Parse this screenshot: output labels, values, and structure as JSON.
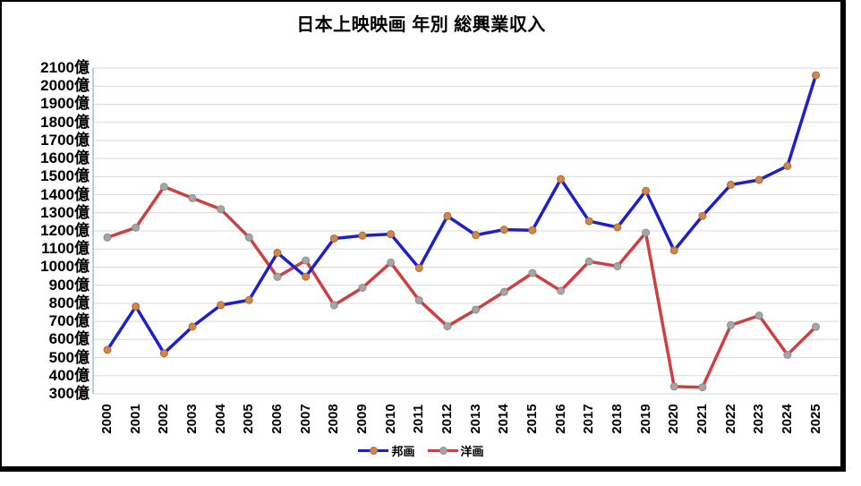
{
  "window": {
    "background_color": "#ffffff",
    "frame_border_color": "#000000"
  },
  "chart_data": {
    "type": "line",
    "title": "日本上映映画 年別 総興業収入",
    "x": [
      "2000",
      "2001",
      "2002",
      "2003",
      "2004",
      "2005",
      "2006",
      "2007",
      "2008",
      "2009",
      "2010",
      "2011",
      "2012",
      "2013",
      "2014",
      "2015",
      "2016",
      "2017",
      "2018",
      "2019",
      "2020",
      "2021",
      "2022",
      "2023",
      "2024",
      "2025"
    ],
    "series": [
      {
        "name": "邦画",
        "line_color": "#1E1ECB",
        "marker_fill": "#D0874A",
        "marker_stroke": "#B06A30",
        "values": [
          543,
          782,
          524,
          671,
          790,
          818,
          1079,
          947,
          1158,
          1174,
          1182,
          995,
          1282,
          1177,
          1207,
          1204,
          1486,
          1254,
          1220,
          1421,
          1092,
          1283,
          1455,
          1482,
          1559,
          2060
        ]
      },
      {
        "name": "洋画",
        "line_color": "#CE4040",
        "marker_fill": "#A6A6A6",
        "marker_stroke": "#8C8C8C",
        "values": [
          1164,
          1218,
          1444,
          1381,
          1320,
          1164,
          946,
          1037,
          790,
          886,
          1025,
          817,
          673,
          765,
          863,
          967,
          869,
          1031,
          1005,
          1190,
          340,
          336,
          679,
          732,
          516,
          670
        ]
      }
    ],
    "ylim": [
      300,
      2100
    ],
    "y_tick_step": 100,
    "y_tick_suffix": "億",
    "grid": true,
    "gridline_color": "#D9D9D9",
    "axis_line_color": "#9DC3D6",
    "legend_position": "bottom"
  }
}
